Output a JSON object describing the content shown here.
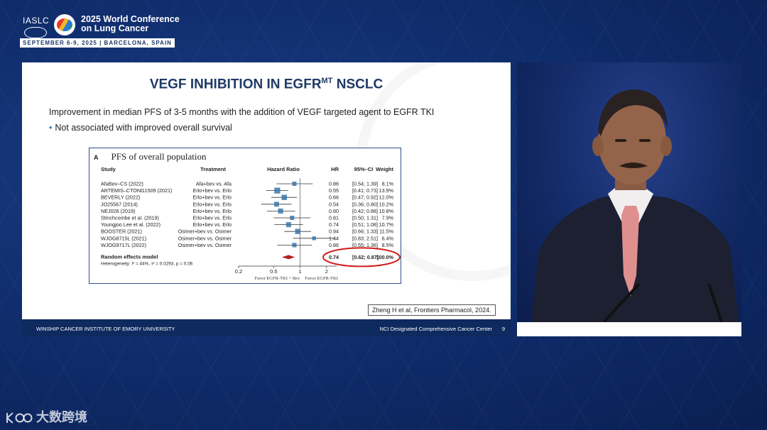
{
  "conference": {
    "org": "IASLC",
    "title_line1": "2025 World Conference",
    "title_line2": "on Lung Cancer",
    "dates": "SEPTEMBER 6-9, 2025  |  BARCELONA, SPAIN"
  },
  "slide": {
    "title_main": "VEGF INHIBITION IN EGFR",
    "title_sup": "MT",
    "title_tail": " NSCLC",
    "bullet_main": "Improvement in median PFS of 3-5 months with the addition of VEGF targeted agent to EGFR TKI",
    "bullet_sub": "Not associated with improved overall survival",
    "citation": "Zheng H et al, Frontiers Pharmacol, 2024.",
    "footer_left": "WINSHIP CANCER INSTITUTE OF EMORY UNIVERSITY",
    "footer_right": "NCI Designated Comprehensive Cancer Center",
    "page_number": "9"
  },
  "figure": {
    "panel_letter": "A",
    "title": "PFS of overall population",
    "headers": {
      "study": "Study",
      "treatment": "Treatment",
      "hr_header": "Hazard Ratio",
      "hr": "HR",
      "ci": "95%–CI",
      "weight": "Weight"
    },
    "rows": [
      {
        "study": "AfaBev–CS (2022)",
        "treatment": "Afa+bev vs. Afa",
        "hr": "0.86",
        "ci": "[0.54; 1.39]",
        "weight": "8.1%"
      },
      {
        "study": "ARTEMIS–CTONG1509 (2021)",
        "treatment": "Erlo+bev vs. Erlo",
        "hr": "0.55",
        "ci": "[0.41; 0.73]",
        "weight": "13.9%"
      },
      {
        "study": "BEVERLY (2022)",
        "treatment": "Erlo+bev vs. Erlo",
        "hr": "0.66",
        "ci": "[0.47; 0.92]",
        "weight": "12.0%"
      },
      {
        "study": "JO25567 (2014)",
        "treatment": "Erlo+bev vs. Erlo",
        "hr": "0.54",
        "ci": "[0.36; 0.80]",
        "weight": "10.2%"
      },
      {
        "study": "NEJ026 (2019)",
        "treatment": "Erlo+bev vs. Erlo",
        "hr": "0.60",
        "ci": "[0.42; 0.88]",
        "weight": "10.8%"
      },
      {
        "study": "Stinchcombe et al. (2019)",
        "treatment": "Erlo+bev vs. Erlo",
        "hr": "0.81",
        "ci": "[0.50; 1.31]",
        "weight": "7.9%"
      },
      {
        "study": "Youngjoo Lee et al. (2022)",
        "treatment": "Erlo+bev vs. Erlo",
        "hr": "0.74",
        "ci": "[0.51; 1.08]",
        "weight": "10.7%"
      },
      {
        "study": "BOOSTER (2021)",
        "treatment": "Osimer+bev vs. Osimer",
        "hr": "0.94",
        "ci": "[0.66; 1.33]",
        "weight": "11.5%"
      },
      {
        "study": "WJOG8715L (2021)",
        "treatment": "Osimer+bev vs. Osimer",
        "hr": "1.44",
        "ci": "[0.83; 2.51]",
        "weight": "6.4%"
      },
      {
        "study": "WJOG9717L (2022)",
        "treatment": "Osimer+bev vs. Osimer",
        "hr": "0.86",
        "ci": "[0.55; 1.36]",
        "weight": "8.5%"
      }
    ],
    "random_effects": {
      "label": "Random effects model",
      "heterogeneity": "Heterogeneity: I² = 44%, τ² = 0.0293, p = 0.06",
      "hr": "0.74",
      "ci": "[0.62; 0.87]",
      "weight": "100.0%",
      "hr_lo": 0.62,
      "hr_hi": 0.87
    },
    "axis_ticks": [
      "0.2",
      "0.5",
      "1",
      "2"
    ],
    "axis_tick_values": [
      0.2,
      0.5,
      1,
      2
    ],
    "axis_range": [
      0.2,
      2.6
    ],
    "favor_left": "Favor EGFR-TKI + Bev",
    "favor_right": "Favor EGFR-TKI",
    "ci_values": [
      [
        0.54,
        1.39
      ],
      [
        0.41,
        0.73
      ],
      [
        0.47,
        0.92
      ],
      [
        0.36,
        0.8
      ],
      [
        0.42,
        0.88
      ],
      [
        0.5,
        1.31
      ],
      [
        0.51,
        1.08
      ],
      [
        0.66,
        1.33
      ],
      [
        0.83,
        2.51
      ],
      [
        0.55,
        1.36
      ]
    ],
    "weights": [
      8.1,
      13.9,
      12.0,
      10.2,
      10.8,
      7.9,
      10.7,
      11.5,
      6.4,
      8.5
    ],
    "marker_color": "#2f6fa8",
    "summary_color": "#b22222",
    "highlight_color": "#d01c1c"
  },
  "watermark": {
    "text": "大数跨境"
  }
}
